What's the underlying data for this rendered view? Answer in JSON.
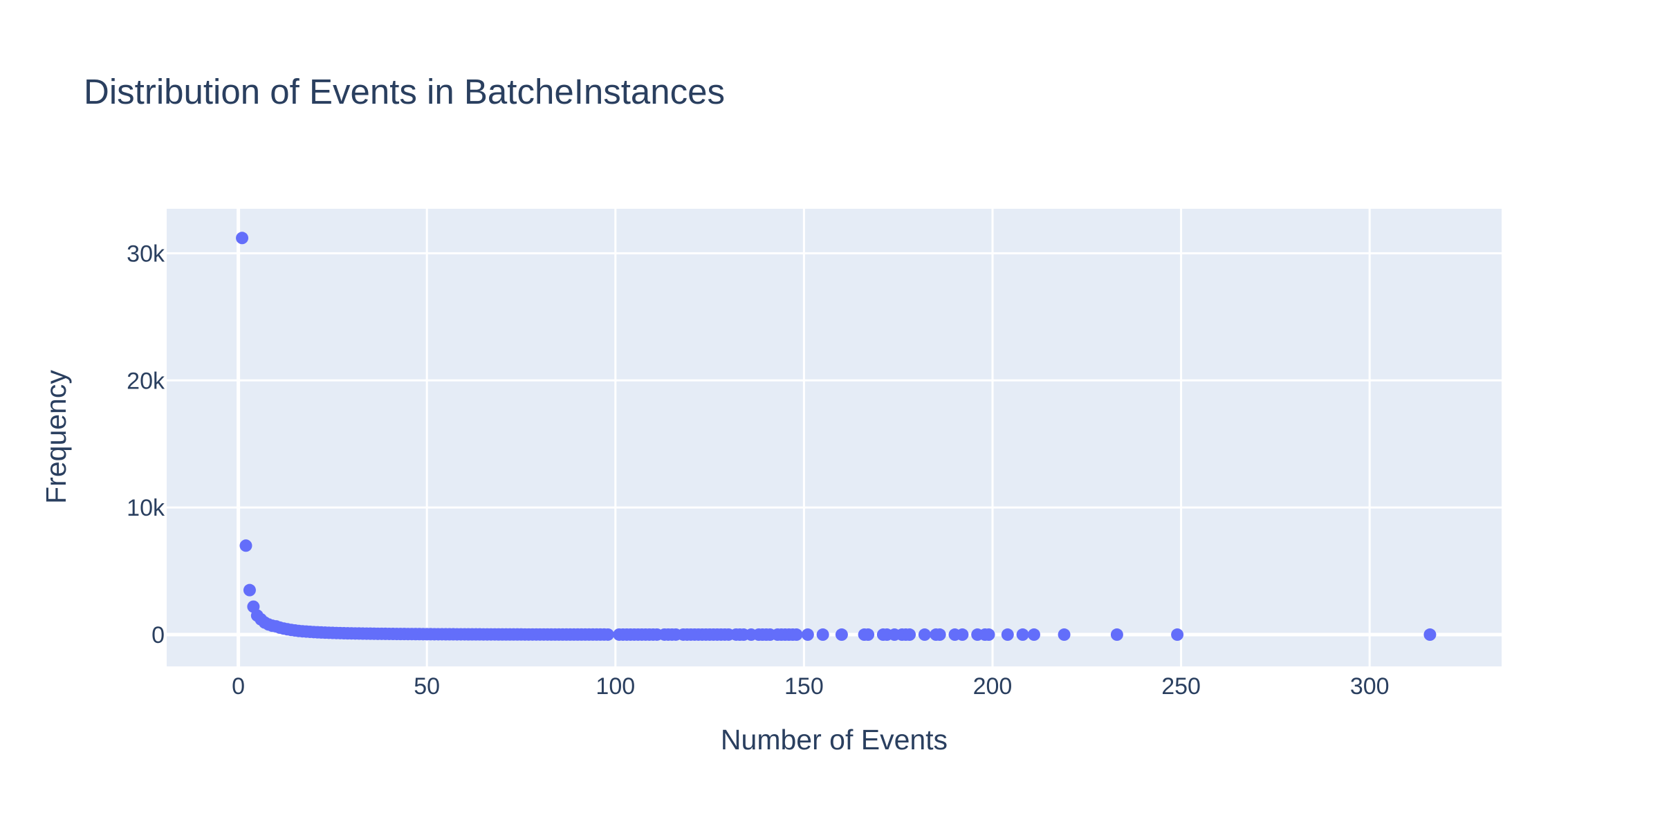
{
  "chart_data": {
    "type": "scatter",
    "title": "Distribution of Events in BatcheInstances",
    "xlabel": "Number of Events",
    "ylabel": "Frequency",
    "xlim": [
      -19,
      335
    ],
    "ylim": [
      -2500,
      33500
    ],
    "x_ticks": [
      0,
      50,
      100,
      150,
      200,
      250,
      300
    ],
    "x_tick_labels": [
      "0",
      "50",
      "100",
      "150",
      "200",
      "250",
      "300"
    ],
    "y_ticks": [
      0,
      10000,
      20000,
      30000
    ],
    "y_tick_labels": [
      "0",
      "10k",
      "20k",
      "30k"
    ],
    "grid": true,
    "colors": {
      "marker": "#636efa",
      "plot_bg": "#e5ecf6",
      "text": "#2a3f5f"
    },
    "series": [
      {
        "x": [
          1,
          2,
          3,
          4,
          5,
          6,
          7,
          8,
          9,
          10,
          11,
          12,
          13,
          14,
          15,
          16,
          17,
          18,
          19,
          20,
          21,
          22,
          23,
          24,
          25,
          26,
          27,
          28,
          29,
          30,
          31,
          32,
          33,
          34,
          35,
          36,
          37,
          38,
          39,
          40,
          41,
          42,
          43,
          44,
          45,
          46,
          47,
          48,
          49,
          50,
          51,
          52,
          53,
          54,
          55,
          56,
          57,
          58,
          59,
          60,
          61,
          62,
          63,
          64,
          65,
          66,
          67,
          68,
          69,
          70,
          71,
          72,
          73,
          74,
          75,
          76,
          77,
          78,
          79,
          80,
          81,
          82,
          83,
          84,
          85,
          86,
          87,
          88,
          89,
          90,
          91,
          92,
          93,
          94,
          95,
          96,
          97,
          98,
          101,
          102,
          103,
          104,
          105,
          106,
          107,
          108,
          109,
          110,
          111,
          113,
          114,
          115,
          116,
          118,
          119,
          120,
          121,
          122,
          123,
          124,
          125,
          126,
          127,
          128,
          129,
          130,
          132,
          133,
          134,
          136,
          138,
          139,
          140,
          141,
          143,
          144,
          145,
          146,
          147,
          148,
          151,
          155,
          160,
          166,
          167,
          171,
          172,
          174,
          176,
          177,
          178,
          182,
          185,
          186,
          190,
          192,
          196,
          198,
          199,
          204,
          208,
          211,
          219,
          233,
          249,
          316
        ],
        "y": [
          31200,
          7000,
          3500,
          2200,
          1500,
          1200,
          950,
          800,
          700,
          650,
          550,
          480,
          420,
          370,
          330,
          290,
          260,
          240,
          220,
          200,
          185,
          170,
          155,
          145,
          135,
          125,
          118,
          110,
          103,
          97,
          92,
          87,
          82,
          78,
          74,
          70,
          66,
          63,
          60,
          57,
          54,
          52,
          49,
          47,
          45,
          43,
          41,
          39,
          37,
          35,
          34,
          32,
          31,
          30,
          28,
          27,
          26,
          25,
          24,
          23,
          22,
          21,
          20,
          19,
          18,
          17,
          17,
          16,
          15,
          15,
          14,
          13,
          13,
          12,
          12,
          11,
          11,
          10,
          10,
          9,
          9,
          9,
          8,
          8,
          8,
          7,
          7,
          7,
          6,
          6,
          6,
          6,
          5,
          5,
          5,
          5,
          5,
          4,
          4,
          4,
          4,
          4,
          3,
          3,
          3,
          3,
          3,
          3,
          3,
          3,
          2,
          2,
          2,
          2,
          2,
          2,
          2,
          2,
          2,
          2,
          2,
          2,
          2,
          2,
          2,
          2,
          2,
          1,
          1,
          1,
          1,
          1,
          1,
          1,
          1,
          1,
          1,
          1,
          1,
          1,
          1,
          1,
          1,
          1,
          1,
          1,
          1,
          1,
          1,
          1,
          1,
          1,
          1,
          1,
          1,
          1,
          1,
          1,
          1,
          1,
          1,
          1,
          1,
          1,
          1,
          1
        ]
      }
    ]
  }
}
